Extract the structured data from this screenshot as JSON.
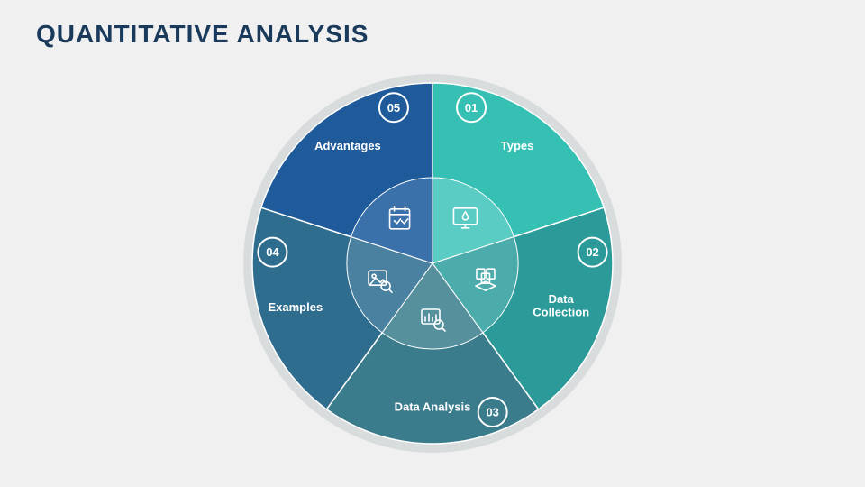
{
  "title": "QUANTITATIVE ANALYSIS",
  "background_color": "#f0f0f0",
  "title_color": "#1a3a5c",
  "title_fontsize": 28,
  "chart": {
    "type": "radial-segments",
    "outer_ring_color": "#d8dcdd",
    "outer_radius": 210,
    "ring_width": 10,
    "segment_outer_r": 200,
    "segment_inner_r": 0,
    "inner_circle_r": 95,
    "inner_circle_opacity": 0.35,
    "segments": [
      {
        "number": "01",
        "label": "Types",
        "color": "#35c0b3",
        "inner_color": "#4fc9c0",
        "icon": "monitor-drop"
      },
      {
        "number": "02",
        "label": "Data\nCollection",
        "color": "#2d9a9a",
        "inner_color": "#3fa6a6",
        "icon": "files-stack"
      },
      {
        "number": "03",
        "label": "Data Analysis",
        "color": "#3a7c8c",
        "inner_color": "#4a8896",
        "icon": "chart-magnify"
      },
      {
        "number": "04",
        "label": "Examples",
        "color": "#2f6d8f",
        "inner_color": "#3d7899",
        "icon": "image-magnify"
      },
      {
        "number": "05",
        "label": "Advantages",
        "color": "#1f5a9a",
        "inner_color": "#2c66a4",
        "icon": "calendar-check"
      }
    ],
    "label_radius": 160,
    "label_radius_multi": 150,
    "badge_radius": 178,
    "badge_circle_r": 16,
    "icon_radius": 62,
    "label_fontsize": 13,
    "label_color": "#ffffff",
    "badge_stroke": "#ffffff",
    "badge_text_color": "#ffffff"
  }
}
